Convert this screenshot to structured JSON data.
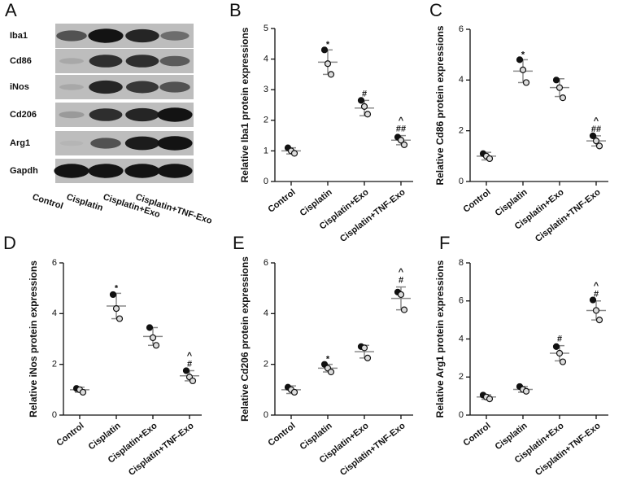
{
  "blot": {
    "letter": "A",
    "rows": [
      "Iba1",
      "Cd86",
      "iNos",
      "Cd206",
      "Arg1",
      "Gapdh"
    ],
    "lanes": [
      "Control",
      "Cisplatin",
      "Cisplatin+Exo",
      "Cisplatin+TNF-Exo"
    ]
  },
  "chart_data": [
    {
      "type": "dot",
      "letter": "B",
      "ylabel": "Relative Iba1 protein expressions",
      "categories": [
        "Control",
        "Cisplatin",
        "Cisplatin+Exo",
        "Cisplatin+TNF-Exo"
      ],
      "values": [
        1.0,
        3.9,
        2.4,
        1.35
      ],
      "errors": [
        0.1,
        0.4,
        0.25,
        0.15
      ],
      "points": [
        [
          1.1,
          1.0,
          0.92
        ],
        [
          4.3,
          3.85,
          3.5
        ],
        [
          2.65,
          2.45,
          2.2
        ],
        [
          1.45,
          1.35,
          1.2
        ]
      ],
      "annotations": [
        [],
        [
          "*"
        ],
        [
          "#"
        ],
        [
          "^",
          "##"
        ]
      ],
      "ylim": [
        0,
        5
      ],
      "yticks": [
        0,
        1,
        2,
        3,
        4,
        5
      ],
      "point_color": "#111",
      "bar_color": "#8a8a8a"
    },
    {
      "type": "dot",
      "letter": "C",
      "ylabel": "Relative Cd86 protein expressions",
      "categories": [
        "Control",
        "Cisplatin",
        "Cisplatin+Exo",
        "Cisplatin+TNF-Exo"
      ],
      "values": [
        1.0,
        4.35,
        3.7,
        1.6
      ],
      "errors": [
        0.15,
        0.45,
        0.35,
        0.2
      ],
      "points": [
        [
          1.1,
          1.0,
          0.9
        ],
        [
          4.8,
          4.4,
          3.9
        ],
        [
          4.0,
          3.7,
          3.3
        ],
        [
          1.8,
          1.6,
          1.4
        ]
      ],
      "annotations": [
        [],
        [
          "*"
        ],
        [],
        [
          "^",
          "##"
        ]
      ],
      "ylim": [
        0,
        6
      ],
      "yticks": [
        0,
        2,
        4,
        6
      ],
      "point_color": "#111",
      "bar_color": "#8a8a8a"
    },
    {
      "type": "dot",
      "letter": "D",
      "ylabel": "Relative iNos protein expressions",
      "categories": [
        "Control",
        "Cisplatin",
        "Cisplatin+Exo",
        "Cisplatin+TNF-Exo"
      ],
      "values": [
        1.0,
        4.3,
        3.1,
        1.55
      ],
      "errors": [
        0.1,
        0.5,
        0.35,
        0.2
      ],
      "points": [
        [
          1.05,
          1.0,
          0.9
        ],
        [
          4.75,
          4.2,
          3.8
        ],
        [
          3.45,
          3.05,
          2.75
        ],
        [
          1.75,
          1.5,
          1.35
        ]
      ],
      "annotations": [
        [],
        [
          "*"
        ],
        [],
        [
          "^",
          "#"
        ]
      ],
      "ylim": [
        0,
        6
      ],
      "yticks": [
        0,
        2,
        4,
        6
      ],
      "point_color": "#111",
      "bar_color": "#8a8a8a"
    },
    {
      "type": "dot",
      "letter": "E",
      "ylabel": "Relative Cd206 protein expressions",
      "categories": [
        "Control",
        "Cisplatin",
        "Cisplatin+Exo",
        "Cisplatin+TNF-Exo"
      ],
      "values": [
        1.0,
        1.85,
        2.5,
        4.6
      ],
      "errors": [
        0.15,
        0.15,
        0.25,
        0.45
      ],
      "points": [
        [
          1.1,
          1.0,
          0.9
        ],
        [
          2.0,
          1.85,
          1.7
        ],
        [
          2.7,
          2.65,
          2.25
        ],
        [
          4.85,
          4.75,
          4.15
        ]
      ],
      "annotations": [
        [],
        [
          "*"
        ],
        [],
        [
          "^",
          "#"
        ]
      ],
      "ylim": [
        0,
        6
      ],
      "yticks": [
        0,
        2,
        4,
        6
      ],
      "point_color": "#111",
      "bar_color": "#8a8a8a"
    },
    {
      "type": "dot",
      "letter": "F",
      "ylabel": "Relative Arg1 protein expressions",
      "categories": [
        "Control",
        "Cisplatin",
        "Cisplatin+Exo",
        "Cisplatin+TNF-Exo"
      ],
      "values": [
        0.95,
        1.35,
        3.25,
        5.5
      ],
      "errors": [
        0.12,
        0.15,
        0.4,
        0.5
      ],
      "points": [
        [
          1.05,
          0.95,
          0.85
        ],
        [
          1.5,
          1.35,
          1.25
        ],
        [
          3.6,
          3.25,
          2.8
        ],
        [
          6.05,
          5.5,
          5.0
        ]
      ],
      "annotations": [
        [],
        [],
        [
          "#"
        ],
        [
          "^",
          "#"
        ]
      ],
      "ylim": [
        0,
        8
      ],
      "yticks": [
        0,
        2,
        4,
        6,
        8
      ],
      "point_color": "#111",
      "bar_color": "#8a8a8a"
    }
  ]
}
